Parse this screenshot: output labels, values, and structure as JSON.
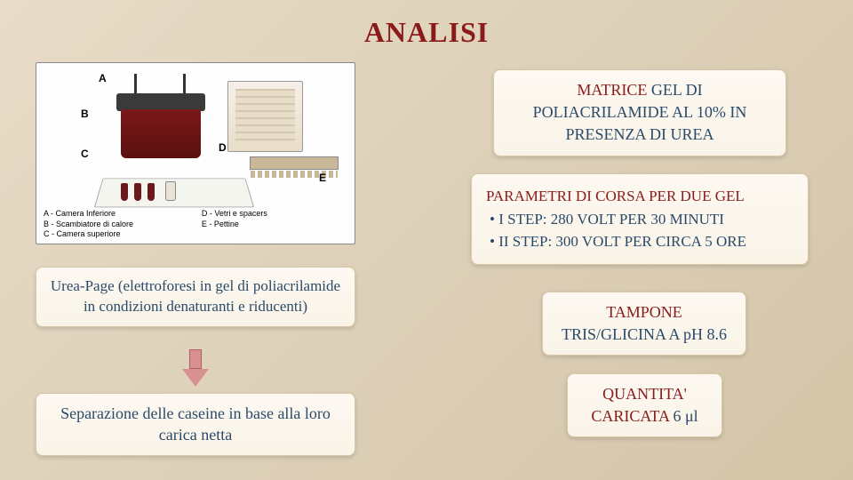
{
  "title": "ANALISI",
  "diagram": {
    "labelA": "A",
    "labelB": "B",
    "labelC": "C",
    "labelD": "D",
    "labelE": "E",
    "legendLeft1": "A - Camera Inferiore",
    "legendLeft2": "B - Scambiatore di calore",
    "legendLeft3": "C - Camera superiore",
    "legendRight1": "D - Vetri e spacers",
    "legendRight2": "E - Pettine"
  },
  "ureaBox": "Urea-Page (elettroforesi in gel di poliacrilamide in condizioni denaturanti e riducenti)",
  "sepBox": "Separazione delle caseine in base alla loro carica netta",
  "matrix": {
    "line1": "MATRICE",
    "line1b": " GEL DI",
    "line2": "POLIACRILAMIDE AL 10% IN",
    "line3": "PRESENZA DI UREA"
  },
  "params": {
    "header": "PARAMETRI DI CORSA PER DUE GEL",
    "bullet1": "• I STEP: 280 VOLT PER 30 MINUTI",
    "bullet2": "• II STEP: 300 VOLT PER CIRCA 5 ORE"
  },
  "tampone": {
    "line1": "TAMPONE",
    "line2": "TRIS/GLICINA A pH 8.6"
  },
  "quantita": {
    "line1": "QUANTITA'",
    "line2": "CARICATA",
    "line2b": " 6 μl"
  },
  "colors": {
    "titleRed": "#8b1a1a",
    "textBlue": "#2a4a6a",
    "bgGradientStart": "#e8dcc8",
    "bgGradientEnd": "#d4c5a8",
    "boxBg": "#faf4e8",
    "arrowFill": "#d89090"
  }
}
